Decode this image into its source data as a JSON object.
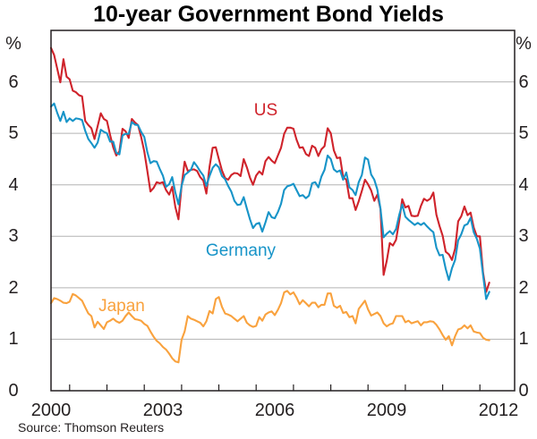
{
  "title": "10-year Government Bond Yields",
  "source": "Source: Thomson Reuters",
  "axes": {
    "unit_left": "%",
    "unit_right": "%",
    "y_ticks": [
      "0",
      "1",
      "2",
      "3",
      "4",
      "5",
      "6"
    ],
    "x_ticks": [
      "2000",
      "2003",
      "2006",
      "2009",
      "2012"
    ]
  },
  "colors": {
    "us": "#cf232b",
    "germany": "#1794c8",
    "japan": "#f9a23e",
    "grid": "#b3b3b3",
    "frame": "#231f20",
    "text": "#231f20"
  },
  "chart_data": {
    "type": "line",
    "title": "10-year Government Bond Yields",
    "ylabel": "%",
    "source": "Source: Thomson Reuters",
    "grid": true,
    "legend_position": "inline-labels",
    "xlim": [
      2000.0,
      2012.43
    ],
    "ylim": [
      0,
      7
    ],
    "y_gridlines": [
      1,
      2,
      3,
      4,
      5,
      6
    ],
    "x_year_labels": [
      2000,
      2003,
      2006,
      2009,
      2012
    ],
    "x_tick_years": [
      2000.5,
      2001.5,
      2002.5,
      2003.5,
      2004.5,
      2005.5,
      2006.5,
      2007.5,
      2008.5,
      2009.5,
      2010.5,
      2011.5
    ],
    "x_start_year": 2000,
    "frequency": "monthly",
    "series": [
      {
        "name": "US",
        "color": "#cf232b",
        "values": [
          6.66,
          6.52,
          6.26,
          5.99,
          6.44,
          6.1,
          6.05,
          5.83,
          5.8,
          5.74,
          5.72,
          5.24,
          5.16,
          5.1,
          4.89,
          5.14,
          5.39,
          5.28,
          5.24,
          4.97,
          4.73,
          4.57,
          4.65,
          5.09,
          5.04,
          4.91,
          5.28,
          5.21,
          5.16,
          4.93,
          4.65,
          4.26,
          3.87,
          3.94,
          4.05,
          4.03,
          4.05,
          3.9,
          3.81,
          3.96,
          3.57,
          3.33,
          3.98,
          4.45,
          4.27,
          4.29,
          4.3,
          4.27,
          4.15,
          4.08,
          3.83,
          4.35,
          4.72,
          4.73,
          4.5,
          4.28,
          4.13,
          4.1,
          4.19,
          4.23,
          4.22,
          4.17,
          4.5,
          4.34,
          4.14,
          4.0,
          4.18,
          4.26,
          4.2,
          4.46,
          4.54,
          4.47,
          4.42,
          4.57,
          4.72,
          4.99,
          5.11,
          5.11,
          5.09,
          4.88,
          4.72,
          4.73,
          4.6,
          4.56,
          4.76,
          4.72,
          4.56,
          4.69,
          4.75,
          5.1,
          5.0,
          4.67,
          4.52,
          4.53,
          4.15,
          4.1,
          3.74,
          3.74,
          3.51,
          3.68,
          3.88,
          4.1,
          4.01,
          3.89,
          3.69,
          3.81,
          3.53,
          2.25,
          2.52,
          2.87,
          2.82,
          2.93,
          3.29,
          3.72,
          3.56,
          3.59,
          3.4,
          3.39,
          3.4,
          3.59,
          3.73,
          3.69,
          3.73,
          3.85,
          3.42,
          3.2,
          3.01,
          2.7,
          2.65,
          2.54,
          2.76,
          3.29,
          3.39,
          3.58,
          3.41,
          3.46,
          3.17,
          3.0,
          3.0,
          2.3,
          1.92,
          2.1
        ]
      },
      {
        "name": "Germany",
        "color": "#1794c8",
        "values": [
          5.52,
          5.58,
          5.4,
          5.24,
          5.42,
          5.22,
          5.29,
          5.24,
          5.29,
          5.28,
          5.26,
          5.05,
          4.89,
          4.81,
          4.72,
          4.82,
          5.07,
          5.03,
          5.0,
          4.84,
          4.84,
          4.62,
          4.59,
          4.96,
          4.99,
          4.99,
          5.22,
          5.17,
          5.16,
          5.03,
          4.93,
          4.63,
          4.42,
          4.46,
          4.45,
          4.31,
          4.18,
          3.96,
          4.01,
          4.15,
          3.85,
          3.62,
          3.98,
          4.19,
          4.24,
          4.29,
          4.44,
          4.36,
          4.26,
          4.18,
          3.98,
          4.17,
          4.33,
          4.4,
          4.34,
          4.17,
          4.11,
          3.98,
          3.87,
          3.69,
          3.61,
          3.62,
          3.76,
          3.54,
          3.33,
          3.16,
          3.24,
          3.26,
          3.09,
          3.27,
          3.47,
          3.37,
          3.35,
          3.47,
          3.63,
          3.9,
          3.97,
          3.99,
          4.02,
          3.9,
          3.78,
          3.8,
          3.74,
          3.79,
          4.03,
          4.05,
          3.95,
          4.16,
          4.29,
          4.57,
          4.5,
          4.3,
          4.25,
          4.28,
          4.1,
          4.24,
          3.95,
          3.9,
          3.8,
          4.05,
          4.19,
          4.53,
          4.49,
          4.2,
          4.1,
          3.91,
          3.54,
          2.98,
          3.05,
          3.1,
          3.04,
          3.14,
          3.41,
          3.62,
          3.38,
          3.32,
          3.27,
          3.22,
          3.26,
          3.22,
          3.26,
          3.19,
          3.13,
          3.08,
          2.78,
          2.63,
          2.64,
          2.37,
          2.15,
          2.38,
          2.54,
          2.92,
          3.04,
          3.21,
          3.24,
          3.36,
          3.08,
          2.95,
          2.76,
          2.25,
          1.78,
          1.92
        ]
      },
      {
        "name": "Japan",
        "color": "#f9a23e",
        "values": [
          1.7,
          1.8,
          1.78,
          1.75,
          1.71,
          1.7,
          1.73,
          1.88,
          1.85,
          1.8,
          1.75,
          1.62,
          1.5,
          1.45,
          1.23,
          1.34,
          1.27,
          1.2,
          1.33,
          1.36,
          1.4,
          1.35,
          1.32,
          1.36,
          1.45,
          1.52,
          1.45,
          1.39,
          1.38,
          1.36,
          1.3,
          1.26,
          1.15,
          1.05,
          0.97,
          0.92,
          0.85,
          0.8,
          0.72,
          0.63,
          0.57,
          0.55,
          0.99,
          1.15,
          1.45,
          1.4,
          1.38,
          1.35,
          1.32,
          1.25,
          1.35,
          1.55,
          1.5,
          1.78,
          1.82,
          1.63,
          1.5,
          1.48,
          1.45,
          1.4,
          1.35,
          1.4,
          1.45,
          1.32,
          1.27,
          1.24,
          1.26,
          1.43,
          1.36,
          1.48,
          1.52,
          1.54,
          1.47,
          1.57,
          1.7,
          1.91,
          1.94,
          1.87,
          1.91,
          1.81,
          1.68,
          1.76,
          1.7,
          1.64,
          1.71,
          1.71,
          1.62,
          1.67,
          1.67,
          1.89,
          1.89,
          1.65,
          1.61,
          1.65,
          1.51,
          1.53,
          1.43,
          1.45,
          1.31,
          1.59,
          1.67,
          1.75,
          1.58,
          1.46,
          1.49,
          1.52,
          1.45,
          1.31,
          1.25,
          1.29,
          1.31,
          1.45,
          1.45,
          1.45,
          1.33,
          1.36,
          1.31,
          1.33,
          1.35,
          1.27,
          1.33,
          1.33,
          1.35,
          1.34,
          1.28,
          1.19,
          1.08,
          0.99,
          1.06,
          0.88,
          1.06,
          1.19,
          1.21,
          1.27,
          1.21,
          1.27,
          1.15,
          1.13,
          1.12,
          1.03,
          0.99,
          0.98
        ]
      }
    ]
  }
}
